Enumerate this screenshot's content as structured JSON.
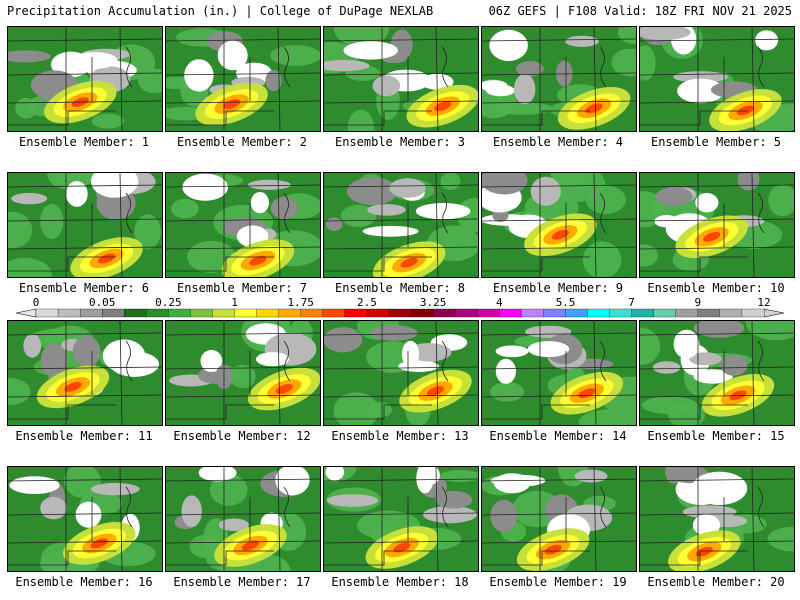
{
  "header": {
    "title_left": "Precipitation Accumulation (in.) | College of DuPage NEXLAB",
    "title_right": "06Z GEFS | F108 Valid: 18Z FRI NOV 21 2025"
  },
  "members": [
    {
      "label": "Ensemble Member: 1"
    },
    {
      "label": "Ensemble Member: 2"
    },
    {
      "label": "Ensemble Member: 3"
    },
    {
      "label": "Ensemble Member: 4"
    },
    {
      "label": "Ensemble Member: 5"
    },
    {
      "label": "Ensemble Member: 6"
    },
    {
      "label": "Ensemble Member: 7"
    },
    {
      "label": "Ensemble Member: 8"
    },
    {
      "label": "Ensemble Member: 9"
    },
    {
      "label": "Ensemble Member: 10"
    },
    {
      "label": "Ensemble Member: 11"
    },
    {
      "label": "Ensemble Member: 12"
    },
    {
      "label": "Ensemble Member: 13"
    },
    {
      "label": "Ensemble Member: 14"
    },
    {
      "label": "Ensemble Member: 15"
    },
    {
      "label": "Ensemble Member: 16"
    },
    {
      "label": "Ensemble Member: 17"
    },
    {
      "label": "Ensemble Member: 18"
    },
    {
      "label": "Ensemble Member: 19"
    },
    {
      "label": "Ensemble Member: 20"
    }
  ],
  "colorbar": {
    "tick_labels": [
      "0",
      "0.05",
      "0.25",
      "1",
      "1.75",
      "2.5",
      "3.25",
      "4",
      "5.5",
      "7",
      "9",
      "12"
    ],
    "colors": [
      "#d9d9d9",
      "#bdbdbd",
      "#9e9e9e",
      "#7f7f7f",
      "#1e6e1e",
      "#2e8b2e",
      "#3cb043",
      "#7fc242",
      "#c7e03a",
      "#ffff33",
      "#ffd700",
      "#ffaa00",
      "#ff7f00",
      "#ff4500",
      "#ff0000",
      "#d40000",
      "#a00000",
      "#800000",
      "#900050",
      "#b0007a",
      "#d4009e",
      "#ff00ff",
      "#c080ff",
      "#8080ff",
      "#40a0ff",
      "#00ffff",
      "#40e0d0",
      "#20b2aa",
      "#66cdaa",
      "#a0a0a0",
      "#808080",
      "#b0b0b0",
      "#d0d0d0"
    ]
  }
}
